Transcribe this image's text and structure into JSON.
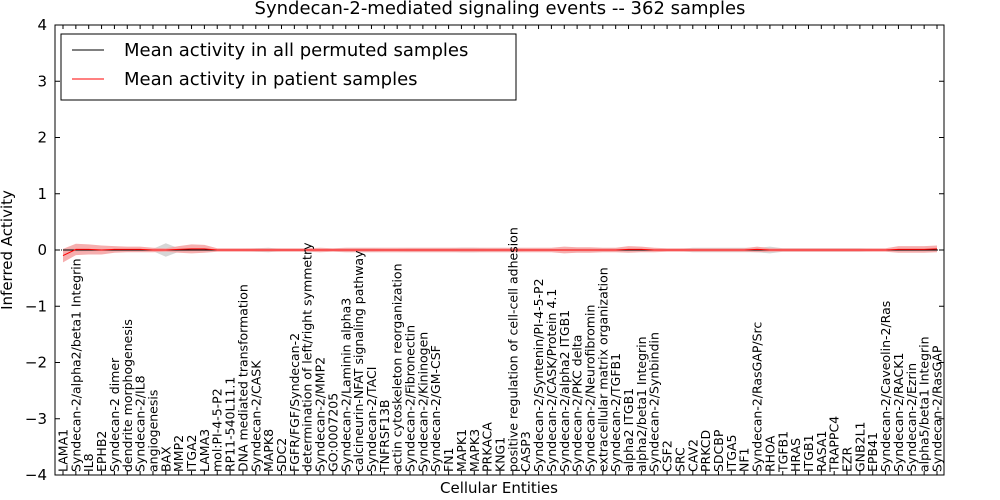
{
  "chart_data": {
    "type": "line",
    "title": "Syndecan-2-mediated signaling events -- 362 samples",
    "xlabel": "Cellular Entities",
    "ylabel": "Inferred Activity",
    "ylim": [
      -4,
      4
    ],
    "yticks": [
      -4,
      -3,
      -2,
      -1,
      0,
      1,
      2,
      3,
      4
    ],
    "ytick_labels": [
      "−4",
      "−3",
      "−2",
      "−1",
      "0",
      "1",
      "2",
      "3",
      "4"
    ],
    "legend_position": "upper-left",
    "categories": [
      "LAMA1",
      "Syndecan-2/alpha2/beta1 Integrin",
      "IL8",
      "EPHB2",
      "Syndecan-2 dimer",
      "dendrite morphogenesis",
      "Syndecan-2/IL8",
      "angiogenesis",
      "BAX",
      "MMP2",
      "ITGA2",
      "LAMA3",
      "mol:PI-4-5-P2",
      "RP11-540L11.1",
      "DNA mediated transformation",
      "Syndecan-2/CASK",
      "MAPK8",
      "SDC2",
      "FGFR/FGF/Syndecan-2",
      "determination of left/right symmetry",
      "Syndecan-2/MMP2",
      "GO:0007205",
      "Syndecan-2/Laminin alpha3",
      "calcineurin-NFAT signaling pathway",
      "Syndecan-2/TACI",
      "TNFRSF13B",
      "actin cytoskeleton reorganization",
      "Syndecan-2/Fibronectin",
      "Syndecan-2/Kininogen",
      "Syndecan-2/GM-CSF",
      "FN1",
      "MAPK1",
      "MAPK3",
      "PRKACA",
      "KNG1",
      "positive regulation of cell-cell adhesion",
      "CASP3",
      "Syndecan-2/Syntenin/PI-4-5-P2",
      "Syndecan-2/CASK/Protein 4.1",
      "Syndecan-2/alpha2 ITGB1",
      "Syndecan-2/PKC delta",
      "Syndecan-2/Neurofibromin",
      "extracellular matrix organization",
      "Syndecan-2/TGFB1",
      "alpha2 ITGB1",
      "alpha2/beta1 Integrin",
      "Syndecan-2/Synbindin",
      "CSF2",
      "SRC",
      "CAV2",
      "PRKCD",
      "SDCBP",
      "ITGA5",
      "NF1",
      "Syndecan-2/RasGAP/Src",
      "RHOA",
      "TGFB1",
      "HRAS",
      "ITGB1",
      "RASA1",
      "TRAPPC4",
      "EZR",
      "GNB2L1",
      "EPB41",
      "Syndecan-2/Caveolin-2/Ras",
      "Syndecan-2/RACK1",
      "Syndecan-2/Ezrin",
      "alpha5/beta1 Integrin",
      "Syndecan-2/RasGAP"
    ],
    "series": [
      {
        "name": "Mean activity in all permuted samples",
        "color": "#000000",
        "values": [
          0,
          0,
          0,
          0,
          0,
          0,
          0,
          0,
          0,
          0,
          0,
          0,
          0,
          0,
          0,
          0,
          0,
          0,
          0,
          0,
          0,
          0,
          0,
          0,
          0,
          0,
          0,
          0,
          0,
          0,
          0,
          0,
          0,
          0,
          0,
          0,
          0,
          0,
          0,
          0,
          0,
          0,
          0,
          0,
          0,
          0,
          0,
          0,
          0,
          0,
          0,
          0,
          0,
          0,
          0,
          0,
          0,
          0,
          0,
          0,
          0,
          0,
          0,
          0,
          0,
          0,
          0,
          0,
          0
        ],
        "band_halfwidth": [
          0.02,
          0.03,
          0.02,
          0.02,
          0.02,
          0.02,
          0.02,
          0.02,
          0.12,
          0.03,
          0.02,
          0.02,
          0.02,
          0.02,
          0.02,
          0.03,
          0.04,
          0.02,
          0.02,
          0.02,
          0.02,
          0.02,
          0.03,
          0.03,
          0.03,
          0.02,
          0.02,
          0.03,
          0.03,
          0.03,
          0.03,
          0.04,
          0.04,
          0.03,
          0.03,
          0.03,
          0.02,
          0.02,
          0.02,
          0.02,
          0.03,
          0.03,
          0.03,
          0.03,
          0.02,
          0.02,
          0.02,
          0.02,
          0.02,
          0.04,
          0.04,
          0.04,
          0.04,
          0.04,
          0.04,
          0.06,
          0.03,
          0.03,
          0.03,
          0.03,
          0.03,
          0.03,
          0.03,
          0.02,
          0.02,
          0.02,
          0.02,
          0.02,
          0.02
        ],
        "band_color": "#cccccc"
      },
      {
        "name": "Mean activity in patient samples",
        "color": "#ff0000",
        "values": [
          -0.1,
          0.01,
          0.01,
          0.0,
          0.01,
          0.01,
          0.01,
          0.0,
          0.0,
          0.01,
          0.02,
          0.02,
          0.0,
          0.0,
          0.0,
          0.0,
          0.0,
          0.0,
          0.0,
          0.0,
          0.0,
          0.0,
          0.0,
          0.0,
          0.0,
          0.0,
          0.0,
          0.0,
          0.0,
          0.0,
          0.0,
          0.0,
          0.0,
          0.0,
          0.0,
          0.0,
          0.0,
          0.0,
          0.0,
          0.0,
          0.0,
          0.0,
          0.0,
          0.0,
          0.01,
          0.01,
          0.0,
          0.0,
          0.0,
          0.0,
          0.0,
          0.0,
          0.0,
          0.0,
          0.01,
          0.0,
          0.0,
          0.0,
          0.0,
          0.0,
          0.0,
          0.0,
          0.0,
          0.0,
          0.0,
          0.01,
          0.01,
          0.01,
          0.02
        ],
        "band_halfwidth": [
          0.12,
          0.1,
          0.09,
          0.08,
          0.06,
          0.05,
          0.05,
          0.04,
          0.03,
          0.06,
          0.08,
          0.07,
          0.03,
          0.03,
          0.03,
          0.03,
          0.03,
          0.03,
          0.03,
          0.03,
          0.04,
          0.03,
          0.04,
          0.04,
          0.04,
          0.04,
          0.04,
          0.04,
          0.04,
          0.04,
          0.04,
          0.04,
          0.04,
          0.04,
          0.04,
          0.04,
          0.04,
          0.04,
          0.04,
          0.06,
          0.05,
          0.05,
          0.04,
          0.04,
          0.06,
          0.05,
          0.04,
          0.03,
          0.03,
          0.03,
          0.03,
          0.03,
          0.03,
          0.03,
          0.05,
          0.03,
          0.03,
          0.03,
          0.03,
          0.03,
          0.03,
          0.03,
          0.03,
          0.03,
          0.03,
          0.06,
          0.06,
          0.06,
          0.06
        ],
        "band_color": "#f4a0a0"
      }
    ]
  }
}
